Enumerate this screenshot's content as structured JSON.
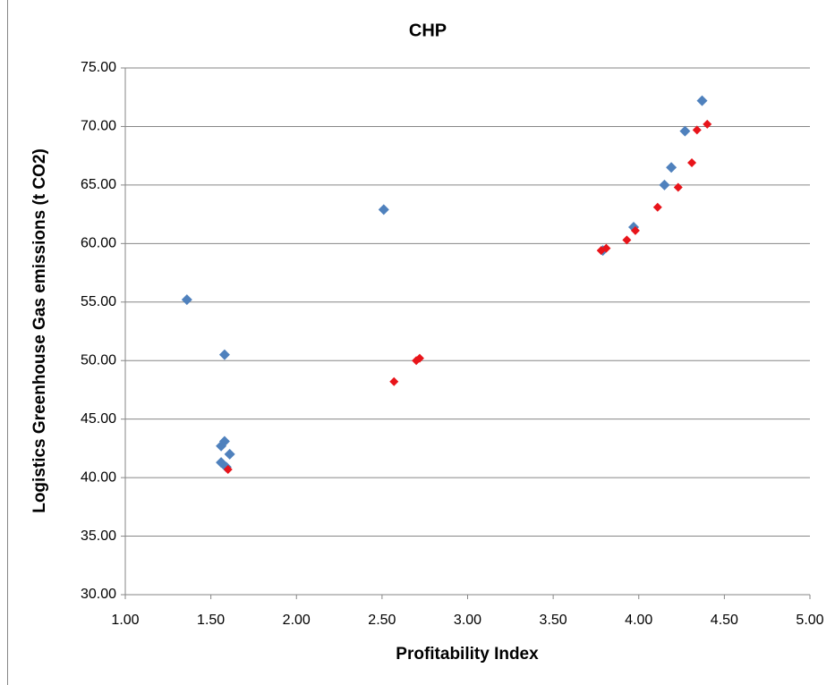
{
  "chart_data": {
    "type": "scatter",
    "title": "CHP",
    "x_label": "Profitability Index",
    "y_label": "Logistics Greenhouse Gas emissions (t CO2)",
    "xlim": [
      1,
      5
    ],
    "ylim": [
      30,
      75
    ],
    "xticks": [
      {
        "value": 1,
        "label": "1.00"
      },
      {
        "value": 1.5,
        "label": "1.50"
      },
      {
        "value": 2,
        "label": "2.00"
      },
      {
        "value": 2.5,
        "label": "2.50"
      },
      {
        "value": 3,
        "label": "3.00"
      },
      {
        "value": 3.5,
        "label": "3.50"
      },
      {
        "value": 4,
        "label": "4.00"
      },
      {
        "value": 4.5,
        "label": "4.50"
      },
      {
        "value": 5,
        "label": "5.00"
      }
    ],
    "yticks": [
      {
        "value": 30,
        "label": "30.00"
      },
      {
        "value": 35,
        "label": "35.00"
      },
      {
        "value": 40,
        "label": "40.00"
      },
      {
        "value": 45,
        "label": "45.00"
      },
      {
        "value": 50,
        "label": "50.00"
      },
      {
        "value": 55,
        "label": "55.00"
      },
      {
        "value": 60,
        "label": "60.00"
      },
      {
        "value": 65,
        "label": "65.00"
      },
      {
        "value": 70,
        "label": "70.00"
      },
      {
        "value": 75,
        "label": "75.00"
      }
    ],
    "grid": true,
    "series": [
      {
        "color": "#4f81bd",
        "marker_size": 6,
        "x": [
          1.36,
          1.58,
          1.56,
          1.58,
          1.61,
          1.56,
          1.59,
          2.51,
          3.79,
          3.97,
          4.15,
          4.19,
          4.27,
          4.37
        ],
        "values": [
          55.2,
          50.5,
          42.7,
          43.1,
          42.0,
          41.3,
          40.9,
          62.9,
          59.4,
          61.4,
          65.0,
          66.5,
          69.6,
          72.2
        ]
      },
      {
        "color": "#e8141a",
        "marker_size": 5,
        "x": [
          1.6,
          2.57,
          2.7,
          2.72,
          3.78,
          3.81,
          3.93,
          3.98,
          4.11,
          4.23,
          4.31,
          4.34,
          4.4
        ],
        "values": [
          40.7,
          48.2,
          50.0,
          50.2,
          59.4,
          59.6,
          60.3,
          61.1,
          63.1,
          64.8,
          66.9,
          69.7,
          70.2
        ]
      }
    ]
  }
}
